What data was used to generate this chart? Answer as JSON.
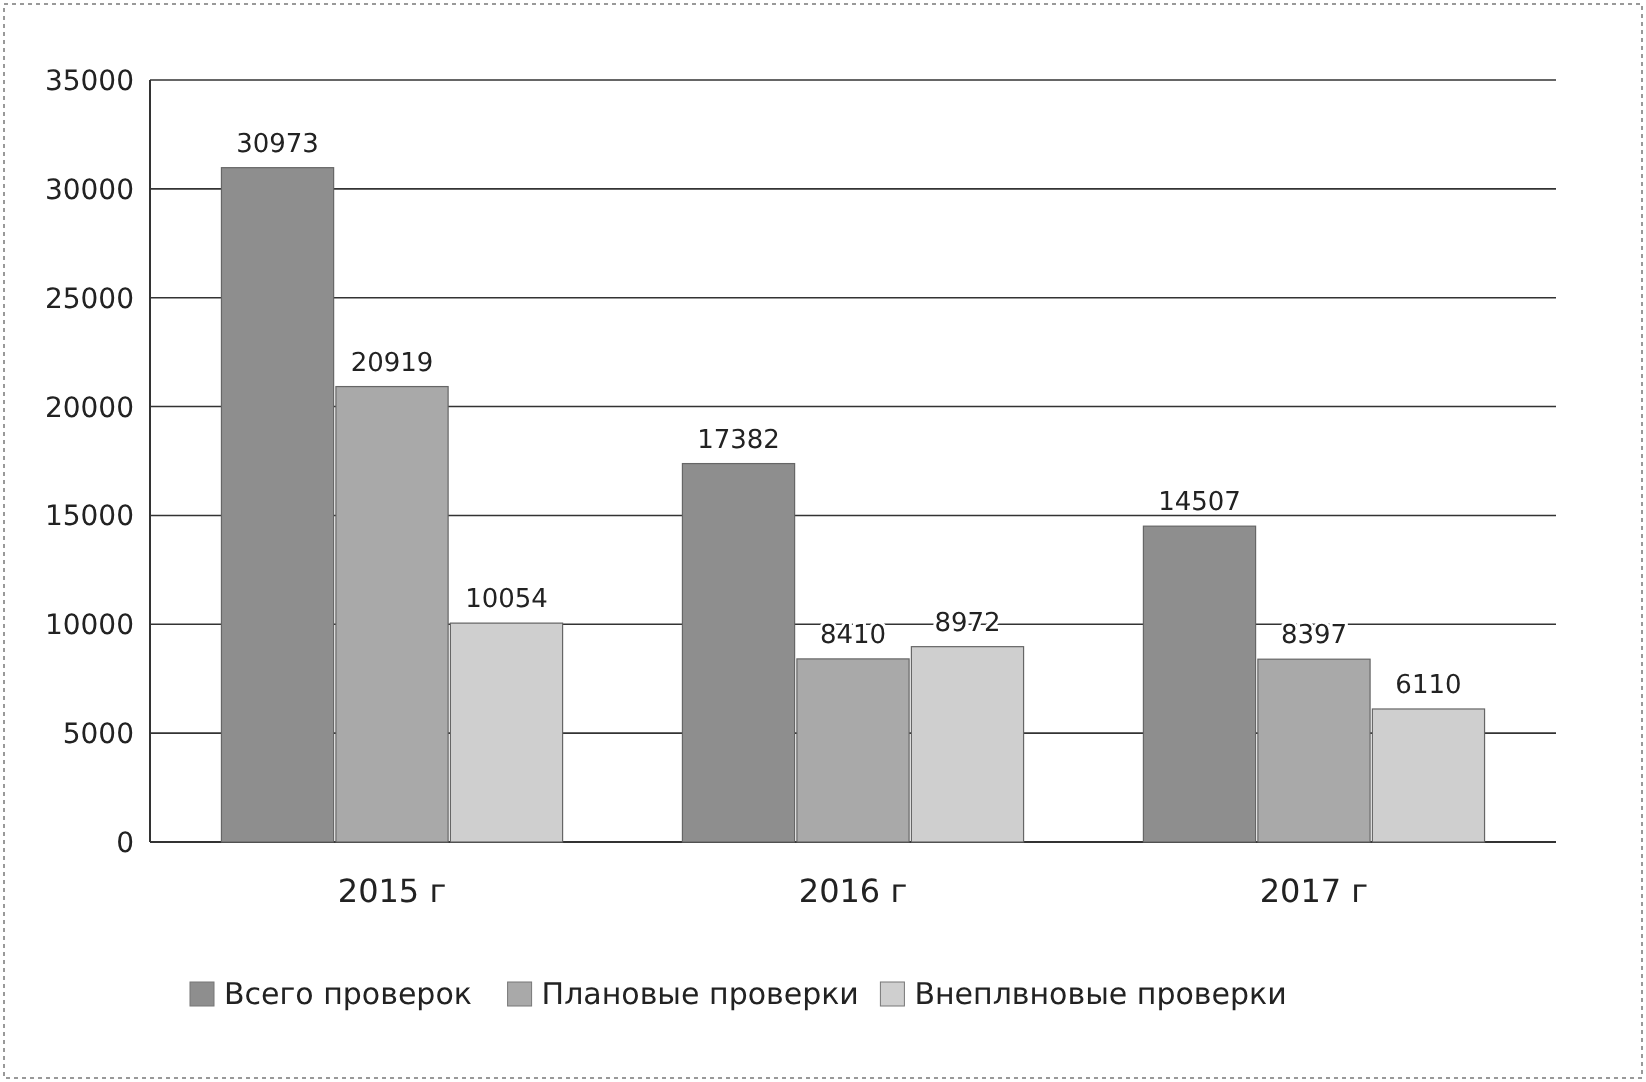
{
  "chart_data": {
    "type": "bar",
    "categories": [
      "2015 г",
      "2016 г",
      "2017 г"
    ],
    "series": [
      {
        "name": "Всего проверок",
        "color": "#8e8e8e",
        "values": [
          30973,
          17382,
          14507
        ]
      },
      {
        "name": "Плановые проверки",
        "color": "#a9a9a9",
        "values": [
          20919,
          8410,
          8397
        ]
      },
      {
        "name": "Внеплвновые проверки",
        "color": "#cfcfcf",
        "values": [
          10054,
          8972,
          6110
        ]
      }
    ],
    "ylim": [
      0,
      35000
    ],
    "yticks": [
      0,
      5000,
      10000,
      15000,
      20000,
      25000,
      30000,
      35000
    ],
    "grid": "y",
    "legend": "bottom",
    "data_labels": true
  }
}
